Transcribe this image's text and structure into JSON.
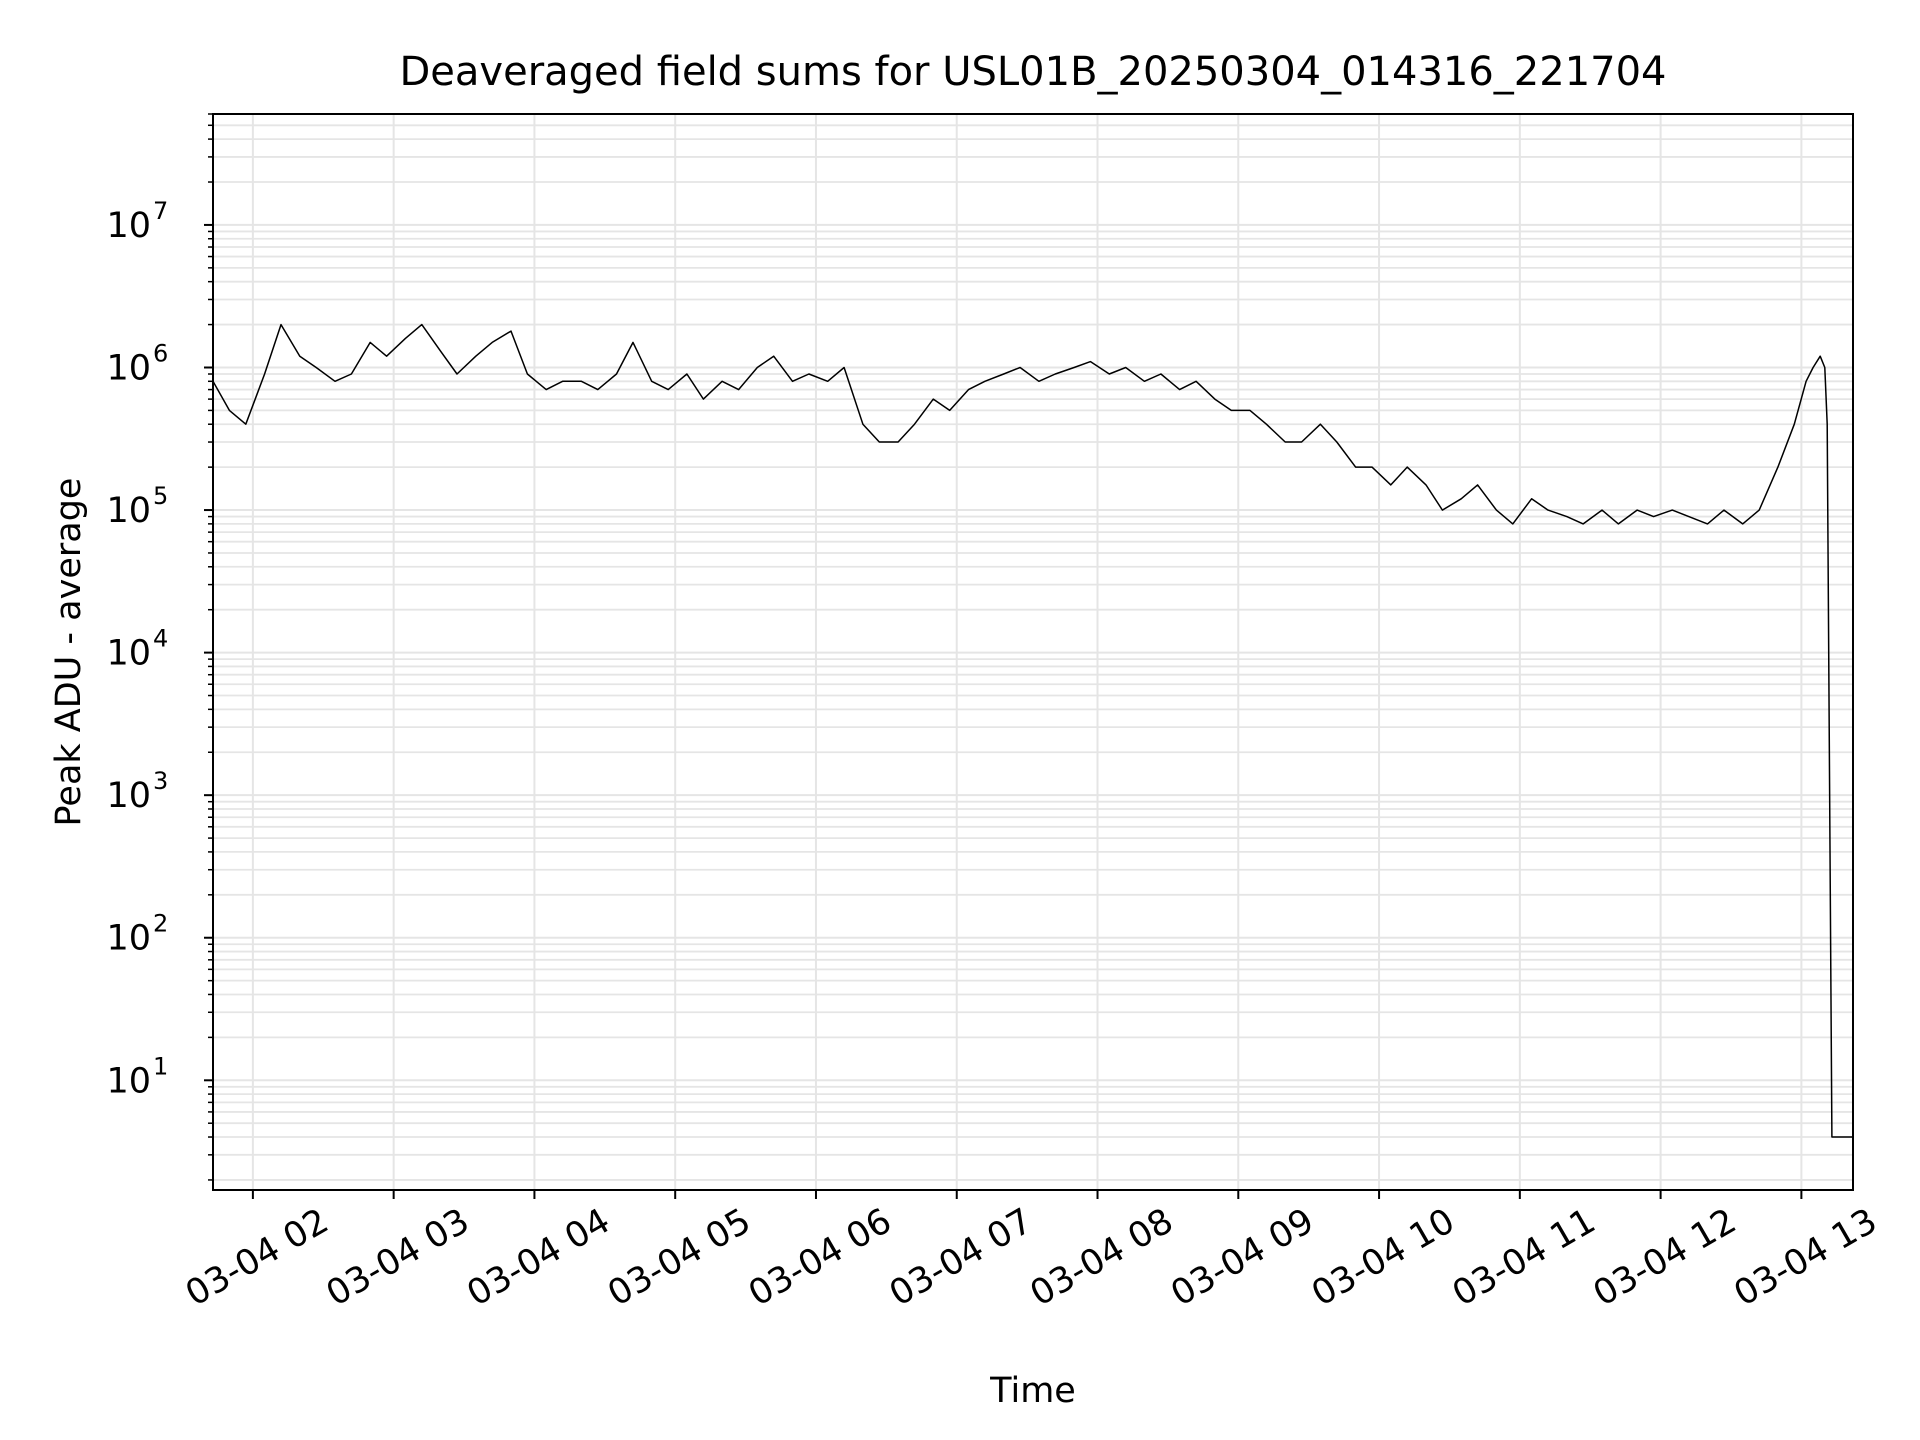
{
  "chart_data": {
    "type": "line",
    "title": "Deaveraged field sums for USL01B_20250304_014316_221704",
    "xlabel": "Time",
    "ylabel": "Peak ADU - average",
    "y_scale": "log",
    "grid": true,
    "grid_color": "#e5e5e5",
    "line_color": "#000000",
    "xlim": [
      "2025-03-04 01:43",
      "2025-03-04 13:22"
    ],
    "ylim": [
      1.7,
      60000000
    ],
    "x_ticks": [
      {
        "value": "2025-03-04 02:00",
        "label": "03-04 02"
      },
      {
        "value": "2025-03-04 03:00",
        "label": "03-04 03"
      },
      {
        "value": "2025-03-04 04:00",
        "label": "03-04 04"
      },
      {
        "value": "2025-03-04 05:00",
        "label": "03-04 05"
      },
      {
        "value": "2025-03-04 06:00",
        "label": "03-04 06"
      },
      {
        "value": "2025-03-04 07:00",
        "label": "03-04 07"
      },
      {
        "value": "2025-03-04 08:00",
        "label": "03-04 08"
      },
      {
        "value": "2025-03-04 09:00",
        "label": "03-04 09"
      },
      {
        "value": "2025-03-04 10:00",
        "label": "03-04 10"
      },
      {
        "value": "2025-03-04 11:00",
        "label": "03-04 11"
      },
      {
        "value": "2025-03-04 12:00",
        "label": "03-04 12"
      },
      {
        "value": "2025-03-04 13:00",
        "label": "03-04 13"
      }
    ],
    "y_ticks": [
      {
        "value": 10,
        "base": "10",
        "exp": "1"
      },
      {
        "value": 100,
        "base": "10",
        "exp": "2"
      },
      {
        "value": 1000,
        "base": "10",
        "exp": "3"
      },
      {
        "value": 10000,
        "base": "10",
        "exp": "4"
      },
      {
        "value": 100000,
        "base": "10",
        "exp": "5"
      },
      {
        "value": 1000000,
        "base": "10",
        "exp": "6"
      },
      {
        "value": 10000000,
        "base": "10",
        "exp": "7"
      }
    ],
    "series": [
      {
        "x": [
          "2025-03-04 01:43",
          "2025-03-04 01:50",
          "2025-03-04 01:57",
          "2025-03-04 02:05",
          "2025-03-04 02:12",
          "2025-03-04 02:20",
          "2025-03-04 02:27",
          "2025-03-04 02:35",
          "2025-03-04 02:42",
          "2025-03-04 02:50",
          "2025-03-04 02:57",
          "2025-03-04 03:05",
          "2025-03-04 03:12",
          "2025-03-04 03:20",
          "2025-03-04 03:27",
          "2025-03-04 03:35",
          "2025-03-04 03:42",
          "2025-03-04 03:50",
          "2025-03-04 03:57",
          "2025-03-04 04:05",
          "2025-03-04 04:12",
          "2025-03-04 04:20",
          "2025-03-04 04:27",
          "2025-03-04 04:35",
          "2025-03-04 04:42",
          "2025-03-04 04:50",
          "2025-03-04 04:57",
          "2025-03-04 05:05",
          "2025-03-04 05:12",
          "2025-03-04 05:20",
          "2025-03-04 05:27",
          "2025-03-04 05:35",
          "2025-03-04 05:42",
          "2025-03-04 05:50",
          "2025-03-04 05:57",
          "2025-03-04 06:05",
          "2025-03-04 06:12",
          "2025-03-04 06:20",
          "2025-03-04 06:27",
          "2025-03-04 06:35",
          "2025-03-04 06:42",
          "2025-03-04 06:50",
          "2025-03-04 06:57",
          "2025-03-04 07:05",
          "2025-03-04 07:12",
          "2025-03-04 07:20",
          "2025-03-04 07:27",
          "2025-03-04 07:35",
          "2025-03-04 07:42",
          "2025-03-04 07:50",
          "2025-03-04 07:57",
          "2025-03-04 08:05",
          "2025-03-04 08:12",
          "2025-03-04 08:20",
          "2025-03-04 08:27",
          "2025-03-04 08:35",
          "2025-03-04 08:42",
          "2025-03-04 08:50",
          "2025-03-04 08:57",
          "2025-03-04 09:05",
          "2025-03-04 09:12",
          "2025-03-04 09:20",
          "2025-03-04 09:27",
          "2025-03-04 09:35",
          "2025-03-04 09:42",
          "2025-03-04 09:50",
          "2025-03-04 09:57",
          "2025-03-04 10:05",
          "2025-03-04 10:12",
          "2025-03-04 10:20",
          "2025-03-04 10:27",
          "2025-03-04 10:35",
          "2025-03-04 10:42",
          "2025-03-04 10:50",
          "2025-03-04 10:57",
          "2025-03-04 11:05",
          "2025-03-04 11:12",
          "2025-03-04 11:20",
          "2025-03-04 11:27",
          "2025-03-04 11:35",
          "2025-03-04 11:42",
          "2025-03-04 11:50",
          "2025-03-04 11:57",
          "2025-03-04 12:05",
          "2025-03-04 12:12",
          "2025-03-04 12:20",
          "2025-03-04 12:27",
          "2025-03-04 12:35",
          "2025-03-04 12:42",
          "2025-03-04 12:50",
          "2025-03-04 12:57",
          "2025-03-04 13:02",
          "2025-03-04 13:05",
          "2025-03-04 13:08",
          "2025-03-04 13:10",
          "2025-03-04 13:11",
          "2025-03-04 13:13",
          "2025-03-04 13:22"
        ],
        "y": [
          800000,
          500000,
          400000,
          900000,
          2000000,
          1200000,
          1000000,
          800000,
          900000,
          1500000,
          1200000,
          1600000,
          2000000,
          1300000,
          900000,
          1200000,
          1500000,
          1800000,
          900000,
          700000,
          800000,
          800000,
          700000,
          900000,
          1500000,
          800000,
          700000,
          900000,
          600000,
          800000,
          700000,
          1000000,
          1200000,
          800000,
          900000,
          800000,
          1000000,
          400000,
          300000,
          300000,
          400000,
          600000,
          500000,
          700000,
          800000,
          900000,
          1000000,
          800000,
          900000,
          1000000,
          1100000,
          900000,
          1000000,
          800000,
          900000,
          700000,
          800000,
          600000,
          500000,
          500000,
          400000,
          300000,
          300000,
          400000,
          300000,
          200000,
          200000,
          150000,
          200000,
          150000,
          100000,
          120000,
          150000,
          100000,
          80000,
          120000,
          100000,
          90000,
          80000,
          100000,
          80000,
          100000,
          90000,
          100000,
          90000,
          80000,
          100000,
          80000,
          100000,
          200000,
          400000,
          800000,
          1000000,
          1200000,
          1000000,
          400000,
          4,
          4
        ]
      }
    ]
  }
}
